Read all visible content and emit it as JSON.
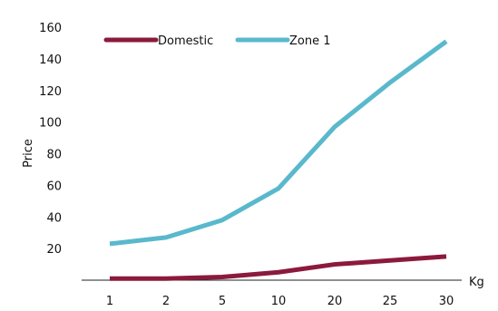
{
  "chart_data": {
    "type": "line",
    "categories": [
      "1",
      "2",
      "5",
      "10",
      "20",
      "25",
      "30"
    ],
    "xlabel": "Kg",
    "ylabel": "Price",
    "ylim": [
      0,
      160
    ],
    "yticks": [
      20,
      40,
      60,
      80,
      100,
      120,
      140,
      160
    ],
    "grid": false,
    "legend": "top-left",
    "series": [
      {
        "name": "Domestic",
        "color": "#8b1a3c",
        "values": [
          1,
          1,
          2,
          5,
          10,
          12.5,
          15
        ]
      },
      {
        "name": "Zone 1",
        "color": "#5ab8cc",
        "values": [
          23,
          27,
          38,
          58,
          97,
          125,
          151
        ]
      }
    ]
  }
}
